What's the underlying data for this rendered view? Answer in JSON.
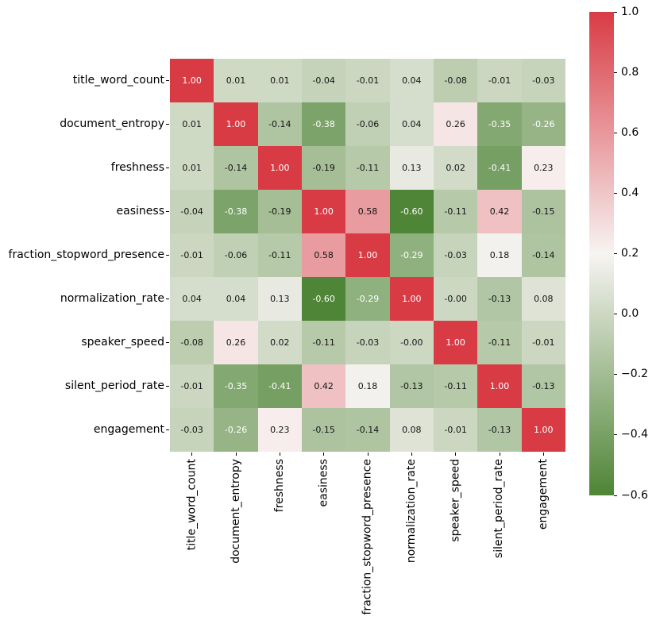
{
  "chart_data": {
    "type": "heatmap",
    "title": "",
    "xlabel": "",
    "ylabel": "",
    "grid": false,
    "categories": [
      "title_word_count",
      "document_entropy",
      "freshness",
      "easiness",
      "fraction_stopword_presence",
      "normalization_rate",
      "speaker_speed",
      "silent_period_rate",
      "engagement"
    ],
    "matrix_display": [
      [
        "1.00",
        "0.01",
        "0.01",
        "-0.04",
        "-0.01",
        "0.04",
        "-0.08",
        "-0.01",
        "-0.03"
      ],
      [
        "0.01",
        "1.00",
        "-0.14",
        "-0.38",
        "-0.06",
        "0.04",
        "0.26",
        "-0.35",
        "-0.26"
      ],
      [
        "0.01",
        "-0.14",
        "1.00",
        "-0.19",
        "-0.11",
        "0.13",
        "0.02",
        "-0.41",
        "0.23"
      ],
      [
        "-0.04",
        "-0.38",
        "-0.19",
        "1.00",
        "0.58",
        "-0.60",
        "-0.11",
        "0.42",
        "-0.15"
      ],
      [
        "-0.01",
        "-0.06",
        "-0.11",
        "0.58",
        "1.00",
        "-0.29",
        "-0.03",
        "0.18",
        "-0.14"
      ],
      [
        "0.04",
        "0.04",
        "0.13",
        "-0.60",
        "-0.29",
        "1.00",
        "-0.00",
        "-0.13",
        "0.08"
      ],
      [
        "-0.08",
        "0.26",
        "0.02",
        "-0.11",
        "-0.03",
        "-0.00",
        "1.00",
        "-0.11",
        "-0.01"
      ],
      [
        "-0.01",
        "-0.35",
        "-0.41",
        "0.42",
        "0.18",
        "-0.13",
        "-0.11",
        "1.00",
        "-0.13"
      ],
      [
        "-0.03",
        "-0.26",
        "0.23",
        "-0.15",
        "-0.14",
        "0.08",
        "-0.01",
        "-0.13",
        "1.00"
      ]
    ],
    "colorbar": {
      "tick_labels": [
        "1.0",
        "0.8",
        "0.6",
        "0.4",
        "0.2",
        "0.0",
        "−0.2",
        "−0.4",
        "−0.6"
      ],
      "vmin": -0.6,
      "vmax": 1.0,
      "center": 0.2,
      "legend_position": "right"
    },
    "colors": {
      "max_red": "#d93b45",
      "center_white": "#f7f4f2",
      "min_green": "#4e8536",
      "annotation_dark": "#141414",
      "annotation_light": "#ffffff",
      "axis_text": "#000000",
      "background": "#ffffff"
    }
  }
}
